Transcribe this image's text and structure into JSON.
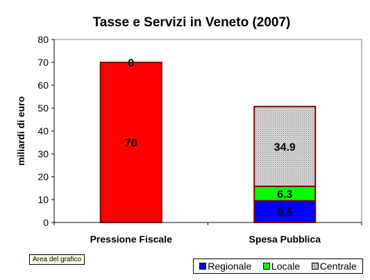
{
  "chart_data": {
    "type": "bar",
    "stacked": true,
    "title": "Tasse e Servizi in Veneto (2007)",
    "xlabel": "",
    "ylabel": "miliardi di euro",
    "ylim": [
      0,
      80
    ],
    "yticks": [
      0,
      10,
      20,
      30,
      40,
      50,
      60,
      70,
      80
    ],
    "grid": false,
    "legend_position": "bottom-right",
    "categories": [
      "Pressione Fiscale",
      "Spesa Pubblica"
    ],
    "bars": [
      {
        "category": "Pressione Fiscale",
        "segments": [
          {
            "value": 70,
            "label": "70",
            "color": "#ff0000",
            "pattern": "solid"
          }
        ],
        "top_label": "0"
      },
      {
        "category": "Spesa Pubblica",
        "segments": [
          {
            "value": 9.5,
            "label": "9.5",
            "color": "#0000ff",
            "pattern": "solid"
          },
          {
            "value": 6.3,
            "label": "6.3",
            "color": "#00ff00",
            "pattern": "solid"
          },
          {
            "value": 34.9,
            "label": "34.9",
            "color": "#c0c0c0",
            "pattern": "dotted"
          }
        ]
      }
    ],
    "legend": [
      {
        "name": "Regionale",
        "color": "#0000ff",
        "pattern": "solid"
      },
      {
        "name": "Locale",
        "color": "#00ff00",
        "pattern": "solid"
      },
      {
        "name": "Centrale",
        "color": "#c0c0c0",
        "pattern": "dotted"
      }
    ],
    "bar_border_color": "#800000"
  },
  "tooltip": "Area del grafico"
}
